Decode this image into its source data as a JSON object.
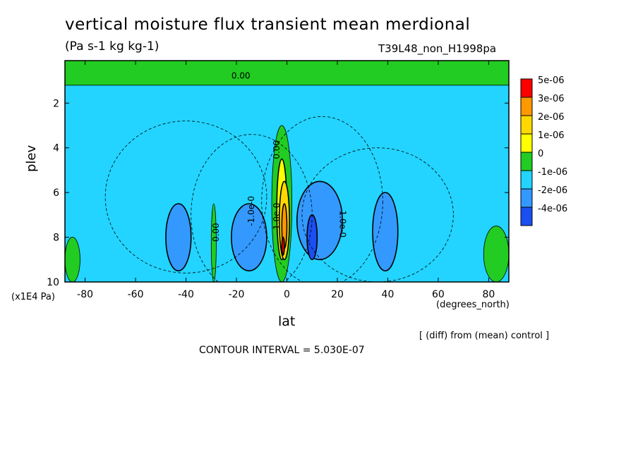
{
  "chart_data": {
    "type": "heatmap",
    "title": "vertical moisture flux transient mean merdional",
    "units": "(Pa s-1 kg kg-1)",
    "run_label": "T39L48_non_H1998pa",
    "xlabel": "lat",
    "xlabel_units": "(degrees_north)",
    "ylabel": "plev",
    "ylabel_units": "(x1E4 Pa)",
    "diff_note": "[ (diff) from (mean) control ]",
    "contour_interval": "CONTOUR INTERVAL = 5.030E-07",
    "x_ticks": [
      "-80",
      "-60",
      "-40",
      "-20",
      "0",
      "20",
      "40",
      "60",
      "80"
    ],
    "x_tick_values": [
      -80,
      -60,
      -40,
      -20,
      0,
      20,
      40,
      60,
      80
    ],
    "y_ticks": [
      "2",
      "4",
      "6",
      "8",
      "10"
    ],
    "y_tick_values": [
      2,
      4,
      6,
      8,
      10
    ],
    "xlim": [
      -88,
      88
    ],
    "ylim": [
      0.1,
      10
    ],
    "y_inverted": true,
    "legend": {
      "placement": "right",
      "labels": [
        "5e-06",
        "3e-06",
        "2e-06",
        "1e-06",
        "0",
        "-1e-06",
        "-2e-06",
        "-4e-06"
      ],
      "colors": [
        "#ff0000",
        "#ff9900",
        "#ffd800",
        "#ffff00",
        "#22cc22",
        "#22d4ff",
        "#3399ff",
        "#1a4ff2"
      ]
    },
    "contour_labels": [
      "0.00",
      "0.00",
      "0.00",
      "-1.0e-0",
      "1.0e-0",
      "-1.0e-0"
    ],
    "fields": {
      "background_level": "-1e-06",
      "regions": [
        {
          "level": "0",
          "lat": [
            -88,
            88
          ],
          "plev": [
            0.1,
            1.2
          ],
          "note": "upper-level band"
        },
        {
          "level": "0",
          "lat": [
            -88,
            -82
          ],
          "plev": [
            8.0,
            10
          ]
        },
        {
          "level": "0",
          "lat": [
            78,
            88
          ],
          "plev": [
            7.5,
            10
          ]
        },
        {
          "level": "0",
          "lat": [
            -30,
            -28
          ],
          "plev": [
            6.5,
            10
          ]
        },
        {
          "level": "-2e-06",
          "lat": [
            -48,
            -38
          ],
          "plev": [
            6.5,
            9.5
          ]
        },
        {
          "level": "-2e-06",
          "lat": [
            -22,
            -8
          ],
          "plev": [
            6.5,
            9.5
          ]
        },
        {
          "level": "-2e-06",
          "lat": [
            4,
            22
          ],
          "plev": [
            5.5,
            9.0
          ]
        },
        {
          "level": "-2e-06",
          "lat": [
            34,
            44
          ],
          "plev": [
            6.0,
            9.5
          ]
        },
        {
          "level": "-4e-06",
          "lat": [
            8,
            12
          ],
          "plev": [
            7.0,
            9.0
          ]
        },
        {
          "level": "0",
          "lat": [
            -6,
            2
          ],
          "plev": [
            3.0,
            10
          ]
        },
        {
          "level": "1e-06",
          "lat": [
            -4,
            0
          ],
          "plev": [
            4.5,
            9.0
          ]
        },
        {
          "level": "2e-06",
          "lat": [
            -3,
            1
          ],
          "plev": [
            5.5,
            9.0
          ]
        },
        {
          "level": "3e-06",
          "lat": [
            -2,
            0
          ],
          "plev": [
            6.5,
            8.5
          ]
        },
        {
          "level": "5e-06",
          "lat": [
            -2,
            -1
          ],
          "plev": [
            8.0,
            8.8
          ]
        }
      ]
    }
  }
}
